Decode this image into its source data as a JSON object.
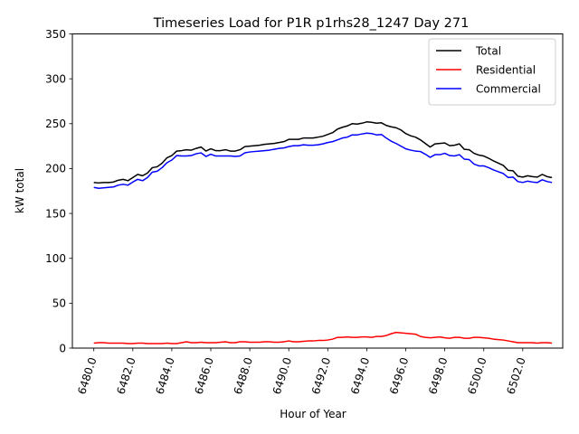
{
  "chart_data": {
    "type": "line",
    "title": "Timeseries Load for P1R p1rhs28_1247  Day 271",
    "xlabel": "Hour of Year",
    "ylabel": "kW total",
    "xlim": [
      6478.9,
      6504.05
    ],
    "ylim": [
      0,
      350
    ],
    "xticks": [
      6480,
      6482,
      6484,
      6486,
      6488,
      6490,
      6492,
      6494,
      6496,
      6498,
      6500,
      6502
    ],
    "xtick_labels": [
      "6480.0",
      "6482.0",
      "6484.0",
      "6486.0",
      "6488.0",
      "6490.0",
      "6492.0",
      "6494.0",
      "6496.0",
      "6498.0",
      "6500.0",
      "6502.0"
    ],
    "yticks": [
      0,
      50,
      100,
      150,
      200,
      250,
      300,
      350
    ],
    "ytick_labels": [
      "0",
      "50",
      "100",
      "150",
      "200",
      "250",
      "300",
      "350"
    ],
    "legend_position": "top-right",
    "x_start": 6480,
    "x_step": 0.25,
    "series": [
      {
        "name": "Total",
        "color": "#000000",
        "values": [
          184.5,
          184,
          184.5,
          184.5,
          185,
          187,
          188,
          186.5,
          190,
          193.5,
          192,
          195,
          201,
          202,
          206,
          212,
          214.5,
          219.5,
          220,
          221,
          220.5,
          222.5,
          224,
          219.5,
          222,
          220,
          220,
          221,
          219.5,
          219.5,
          221,
          224.5,
          225,
          225.5,
          226,
          227,
          227.5,
          228,
          229,
          230,
          232.5,
          232.5,
          232.5,
          234,
          234,
          234,
          235,
          236,
          238,
          240,
          244,
          246,
          247.5,
          250,
          249.5,
          250.5,
          252,
          251.5,
          250.5,
          251,
          248,
          246.5,
          245.5,
          243,
          239,
          236.5,
          235,
          232,
          228,
          224,
          227.5,
          228,
          228.5,
          225.5,
          226,
          227.5,
          221.5,
          221,
          217,
          215,
          214,
          211.5,
          208.5,
          206,
          203.5,
          198,
          197.5,
          191.5,
          190.5,
          192,
          191,
          190.5,
          193.5,
          191,
          190
        ]
      },
      {
        "name": "Residential",
        "color": "#ff0000",
        "values": [
          5.5,
          6,
          6,
          5.5,
          5.5,
          5.5,
          5.5,
          5,
          5,
          5.5,
          5.5,
          5,
          5,
          5,
          5,
          5.5,
          5,
          5,
          6,
          7,
          6,
          6,
          6.5,
          6,
          6,
          6,
          6.5,
          7,
          6,
          6,
          7,
          7,
          6.5,
          6.5,
          6.5,
          7,
          7,
          6.5,
          6.5,
          7,
          8,
          7,
          7,
          7.5,
          8,
          8,
          8.5,
          8.5,
          9,
          10,
          12,
          12,
          12.5,
          12,
          12,
          12.5,
          12.5,
          12,
          13,
          13,
          14,
          16,
          17.5,
          17,
          16.5,
          16,
          15.5,
          13,
          12,
          11.5,
          12,
          12.5,
          11.5,
          11,
          12,
          12,
          11,
          11,
          12,
          12,
          11.5,
          11,
          10,
          9.5,
          9,
          8,
          7,
          6,
          6,
          6,
          6,
          5.5,
          6,
          6,
          5.5
        ]
      },
      {
        "name": "Commercial",
        "color": "#0000ff",
        "values": [
          179,
          178,
          178.5,
          179,
          179.5,
          181.5,
          182.5,
          181.5,
          185,
          188,
          186.5,
          190,
          196,
          197,
          201,
          206.5,
          209.5,
          214.5,
          214,
          214,
          214.5,
          216.5,
          217.5,
          213.5,
          216,
          214,
          214,
          214,
          214,
          213.5,
          214,
          217.5,
          218.5,
          219,
          219.5,
          220,
          220.5,
          221.5,
          222.5,
          223,
          224.5,
          225.5,
          225.5,
          226.5,
          226,
          226,
          226.5,
          227.5,
          229,
          230,
          232,
          234,
          235,
          237.5,
          237.5,
          238.5,
          239.5,
          239,
          237.5,
          238,
          234,
          230.5,
          228,
          225,
          222,
          220.5,
          219.5,
          219,
          216,
          212.5,
          215.5,
          215.5,
          217,
          214.5,
          214,
          215.5,
          210.5,
          210,
          205,
          203,
          203,
          201,
          198.5,
          196.5,
          194.5,
          190,
          190.5,
          185.5,
          184.5,
          186,
          185,
          184.5,
          187.5,
          185.5,
          184.5
        ]
      }
    ]
  }
}
